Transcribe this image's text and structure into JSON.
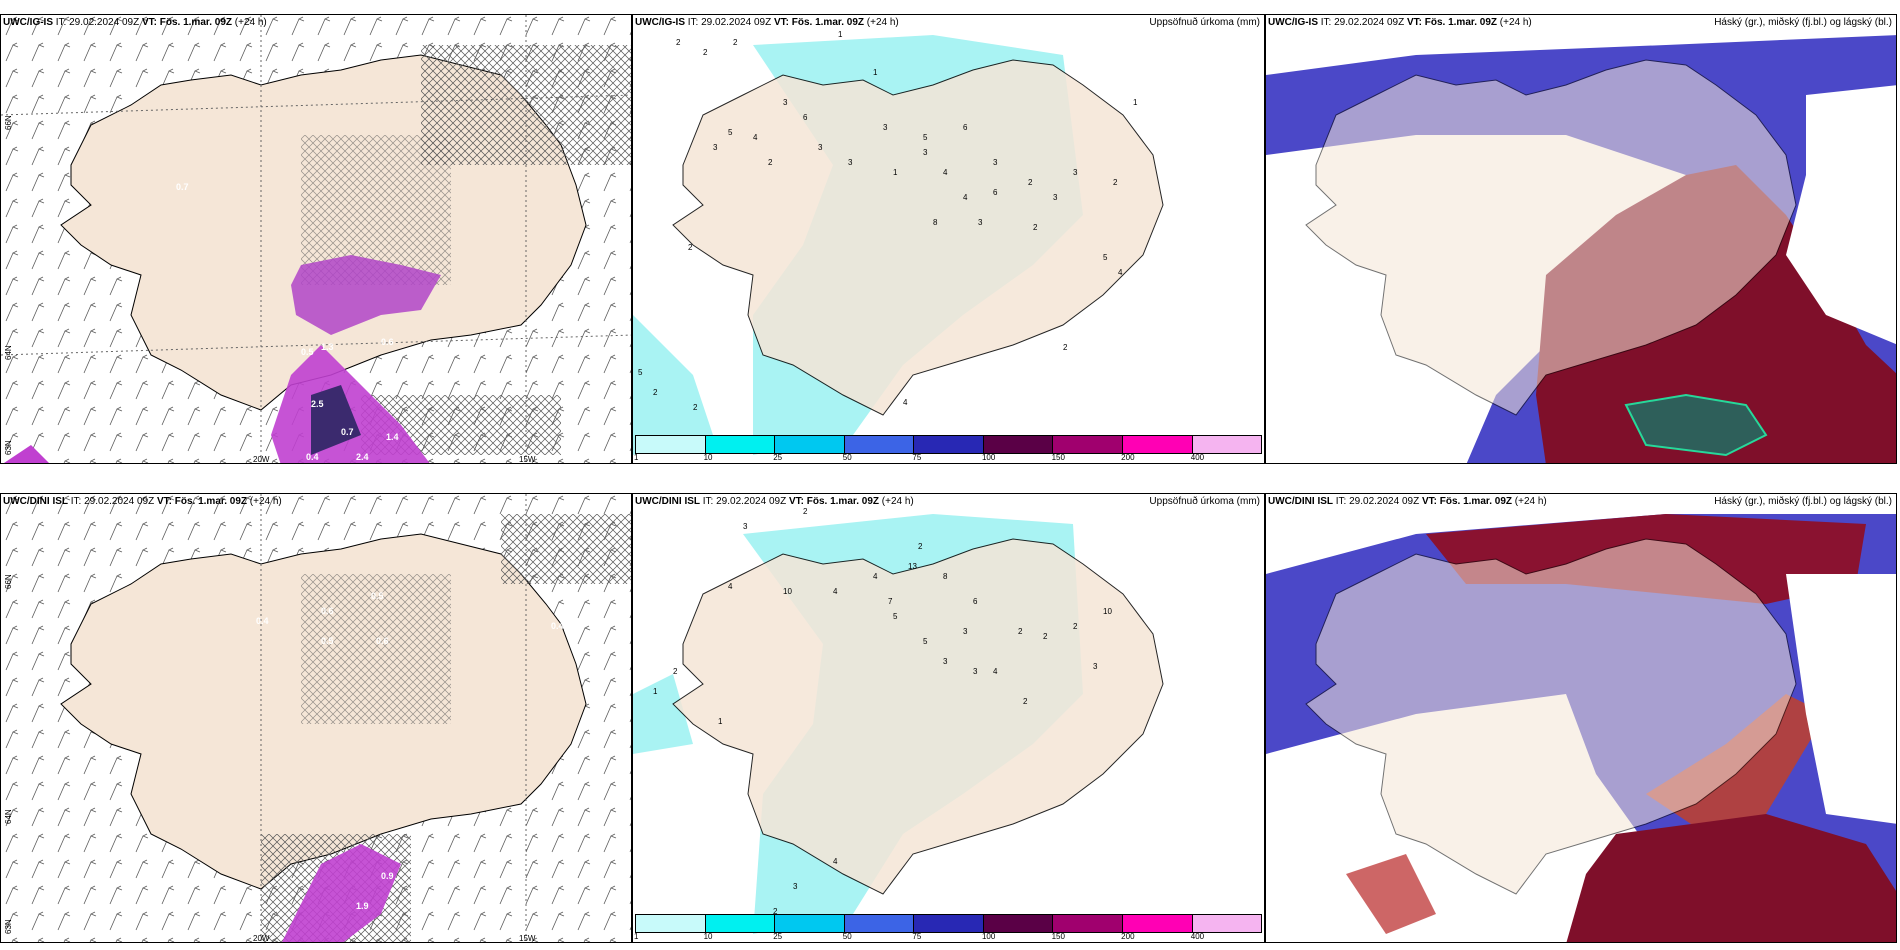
{
  "panels": [
    {
      "model": "UWC/IG-IS",
      "it_label": "IT:",
      "it": "29.02.2024 09Z",
      "vt_label": "VT:",
      "vt": "Fös. 1.mar. 09Z",
      "lead": "(+24 h)",
      "title": ""
    },
    {
      "model": "UWC/IG-IS",
      "it_label": "IT:",
      "it": "29.02.2024 09Z",
      "vt_label": "VT:",
      "vt": "Fös. 1.mar. 09Z",
      "lead": "(+24 h)",
      "title": "Uppsöfnuð úrkoma (mm)"
    },
    {
      "model": "UWC/IG-IS",
      "it_label": "IT:",
      "it": "29.02.2024 09Z",
      "vt_label": "VT:",
      "vt": "Fös. 1.mar. 09Z",
      "lead": "(+24 h)",
      "title": "Háský (gr.), miðský (fj.bl.) og lágský (bl.)"
    },
    {
      "model": "UWC/DINI ISL",
      "it_label": "IT:",
      "it": "29.02.2024 09Z",
      "vt_label": "VT:",
      "vt": "Fös. 1.mar. 09Z",
      "lead": "(+24 h)",
      "title": ""
    },
    {
      "model": "UWC/DINI ISL",
      "it_label": "IT:",
      "it": "29.02.2024 09Z",
      "vt_label": "VT:",
      "vt": "Fös. 1.mar. 09Z",
      "lead": "(+24 h)",
      "title": "Uppsöfnuð úrkoma (mm)"
    },
    {
      "model": "UWC/DINI ISL",
      "it_label": "IT:",
      "it": "29.02.2024 09Z",
      "vt_label": "VT:",
      "vt": "Fös. 1.mar. 09Z",
      "lead": "(+24 h)",
      "title": "Háský (gr.), miðský (fj.bl.) og lágský (bl.)"
    }
  ],
  "gridlabels": {
    "lat66": "66N",
    "lat64": "64N",
    "lat63": "63N",
    "lon20": "20W",
    "lon15": "15W"
  },
  "colorbar": {
    "ticks": [
      "1",
      "10",
      "25",
      "50",
      "75",
      "100",
      "150",
      "200",
      "400"
    ],
    "colors": [
      "#c8fafa",
      "#00f0f0",
      "#00c8f0",
      "#3c64e6",
      "#2828b4",
      "#5a0046",
      "#a0006e",
      "#ff00b4",
      "#f5b4f0"
    ]
  },
  "labels": {
    "p0": [
      "0.7",
      "1.3",
      "0.5",
      "0.6",
      "2.5",
      "0.7",
      "1.4",
      "2.4",
      "0.4"
    ],
    "p1": [
      "2",
      "2",
      "2",
      "1",
      "1",
      "3",
      "4",
      "6",
      "2",
      "5",
      "3",
      "1",
      "3",
      "3",
      "3",
      "5",
      "3",
      "4",
      "6",
      "3",
      "2",
      "3",
      "3",
      "2",
      "1",
      "4",
      "5",
      "8",
      "3",
      "6",
      "4",
      "2",
      "5",
      "2",
      "2",
      "2",
      "2",
      "4"
    ],
    "p3": [
      "0.4",
      "0.6",
      "0.5",
      "0.6",
      "0.5",
      "0.9",
      "1.9",
      "0.4"
    ],
    "p4": [
      "2",
      "3",
      "4",
      "1",
      "2",
      "10",
      "4",
      "4",
      "2",
      "5",
      "13",
      "7",
      "8",
      "3",
      "6",
      "5",
      "3",
      "3",
      "2",
      "4",
      "10",
      "2",
      "3",
      "2",
      "2",
      "4",
      "3",
      "2",
      "1"
    ]
  },
  "colors": {
    "land": "#f5e6d7",
    "coast": "#000000",
    "precip_light": "#a9f3f3",
    "cloud_high": "#7f0f2a",
    "cloud_mid": "#4b48c8",
    "cloud_low": "#2e5f5a"
  }
}
